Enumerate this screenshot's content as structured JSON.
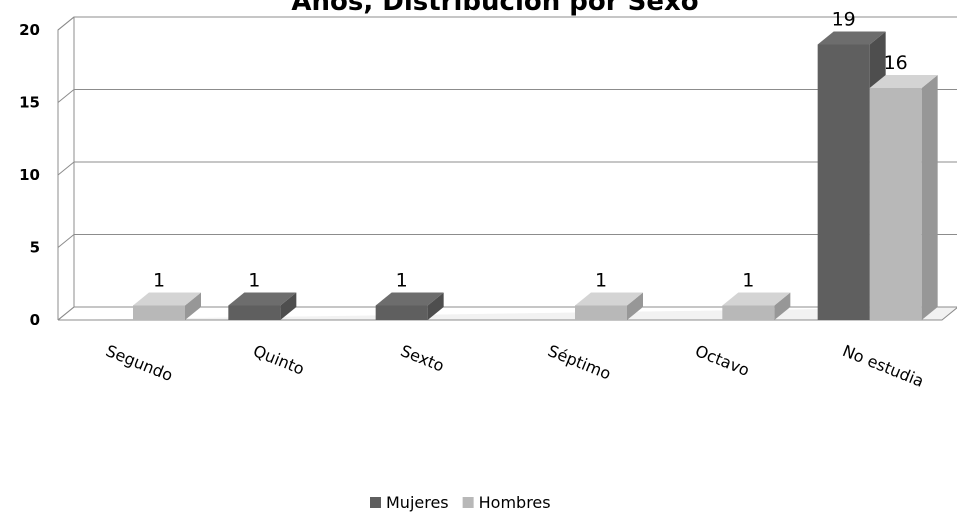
{
  "chart_data": {
    "type": "bar",
    "title": "Años, Distribución por Sexo",
    "categories": [
      "Segundo",
      "Quinto",
      "Sexto",
      "Séptimo",
      "Octavo",
      "No estudia"
    ],
    "series": [
      {
        "name": "Mujeres",
        "color": "#5f5f5f",
        "values": [
          0,
          1,
          1,
          0,
          0,
          19
        ]
      },
      {
        "name": "Hombres",
        "color": "#b8b8b8",
        "values": [
          1,
          0,
          0,
          1,
          1,
          16
        ]
      }
    ],
    "data_labels": true,
    "ylim": [
      0,
      20
    ],
    "yticks": [
      0,
      5,
      10,
      15,
      20
    ],
    "grid": true,
    "three_d": true,
    "legend_position": "bottom",
    "xlabel": "",
    "ylabel": ""
  }
}
